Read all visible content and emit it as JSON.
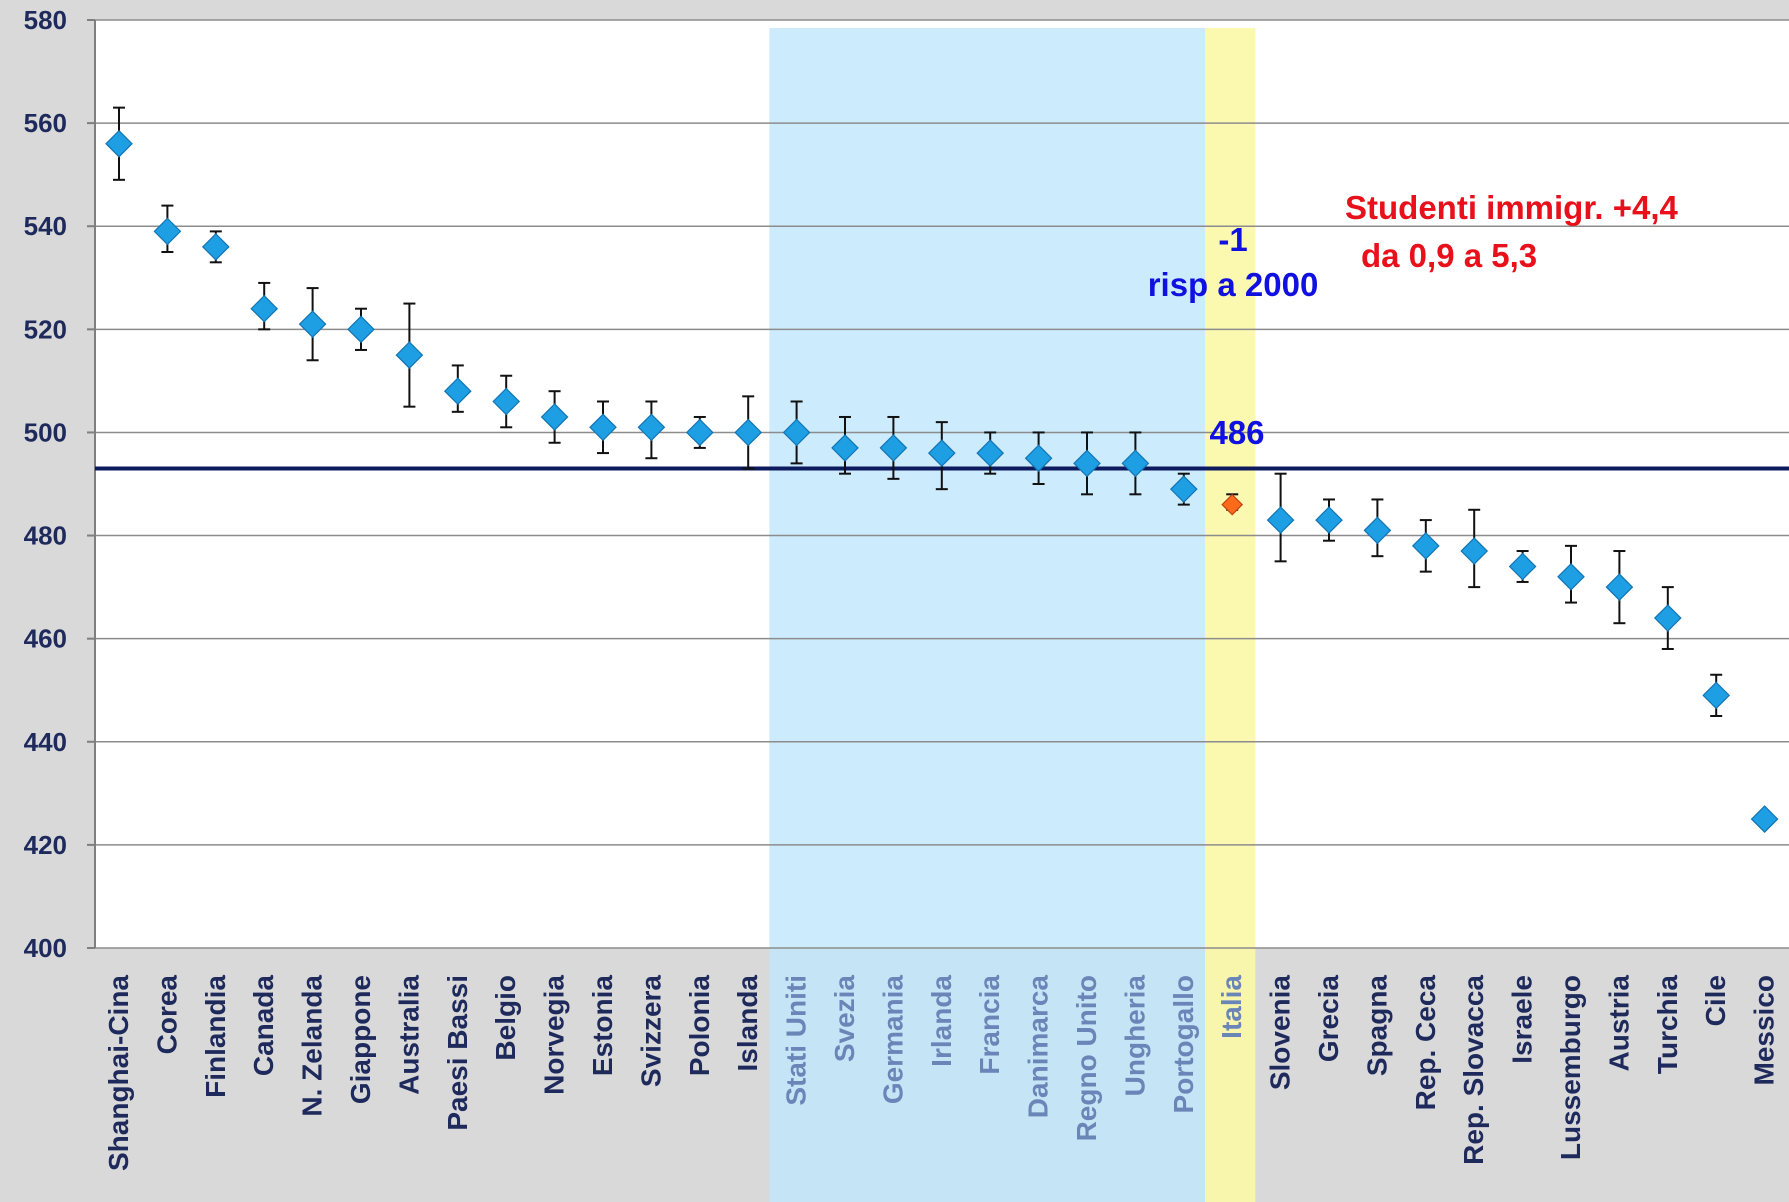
{
  "chart_data": {
    "type": "scatter",
    "ylim": [
      400,
      580
    ],
    "yticks": [
      400,
      420,
      440,
      460,
      480,
      500,
      520,
      540,
      560,
      580
    ],
    "grid": true,
    "reference_line": 493,
    "categories": [
      "Shanghai-Cina",
      "Corea",
      "Finlandia",
      "Canada",
      "N. Zelanda",
      "Giappone",
      "Australia",
      "Paesi Bassi",
      "Belgio",
      "Norvegia",
      "Estonia",
      "Svizzera",
      "Polonia",
      "Islanda",
      "Stati Uniti",
      "Svezia",
      "Germania",
      "Irlanda",
      "Francia",
      "Danimarca",
      "Regno Unito",
      "Ungheria",
      "Portogallo",
      "Italia",
      "Slovenia",
      "Grecia",
      "Spagna",
      "Rep. Ceca",
      "Rep. Slovacca",
      "Israele",
      "Lussemburgo",
      "Austria",
      "Turchia",
      "Cile",
      "Messico"
    ],
    "values": [
      556,
      539,
      536,
      524,
      521,
      520,
      515,
      508,
      506,
      503,
      501,
      501,
      500,
      500,
      500,
      497,
      497,
      496,
      496,
      495,
      494,
      494,
      489,
      486,
      483,
      483,
      481,
      478,
      477,
      474,
      472,
      470,
      464,
      449,
      425
    ],
    "error_low": [
      549,
      535,
      533,
      520,
      514,
      516,
      505,
      504,
      501,
      498,
      496,
      495,
      497,
      493,
      494,
      492,
      491,
      489,
      492,
      490,
      488,
      488,
      486,
      485,
      475,
      479,
      476,
      473,
      470,
      471,
      467,
      463,
      458,
      445,
      425
    ],
    "error_high": [
      563,
      544,
      539,
      529,
      528,
      524,
      525,
      513,
      511,
      508,
      506,
      506,
      503,
      507,
      506,
      503,
      503,
      502,
      500,
      500,
      500,
      500,
      492,
      488,
      492,
      487,
      487,
      483,
      485,
      477,
      478,
      477,
      470,
      453,
      425
    ],
    "highlighted_index": 23,
    "colors": {
      "marker": "#1e9fe3",
      "marker_highlight": "#ff6a1a",
      "band_blue": "#bfe6fb",
      "band_yellow": "#fbf7a6",
      "reference_line": "#0d1a5e",
      "axis_text": "#1f2a5c",
      "background": "#d9d9d9",
      "plot_bg": "#ffffff"
    },
    "annotations": {
      "change_value": "-1",
      "change_label": "risp a 2000",
      "italy_score": "486",
      "immigrant_line1": "Studenti immigr. +4,4",
      "immigrant_line2": "da 0,9 a 5,3"
    }
  }
}
